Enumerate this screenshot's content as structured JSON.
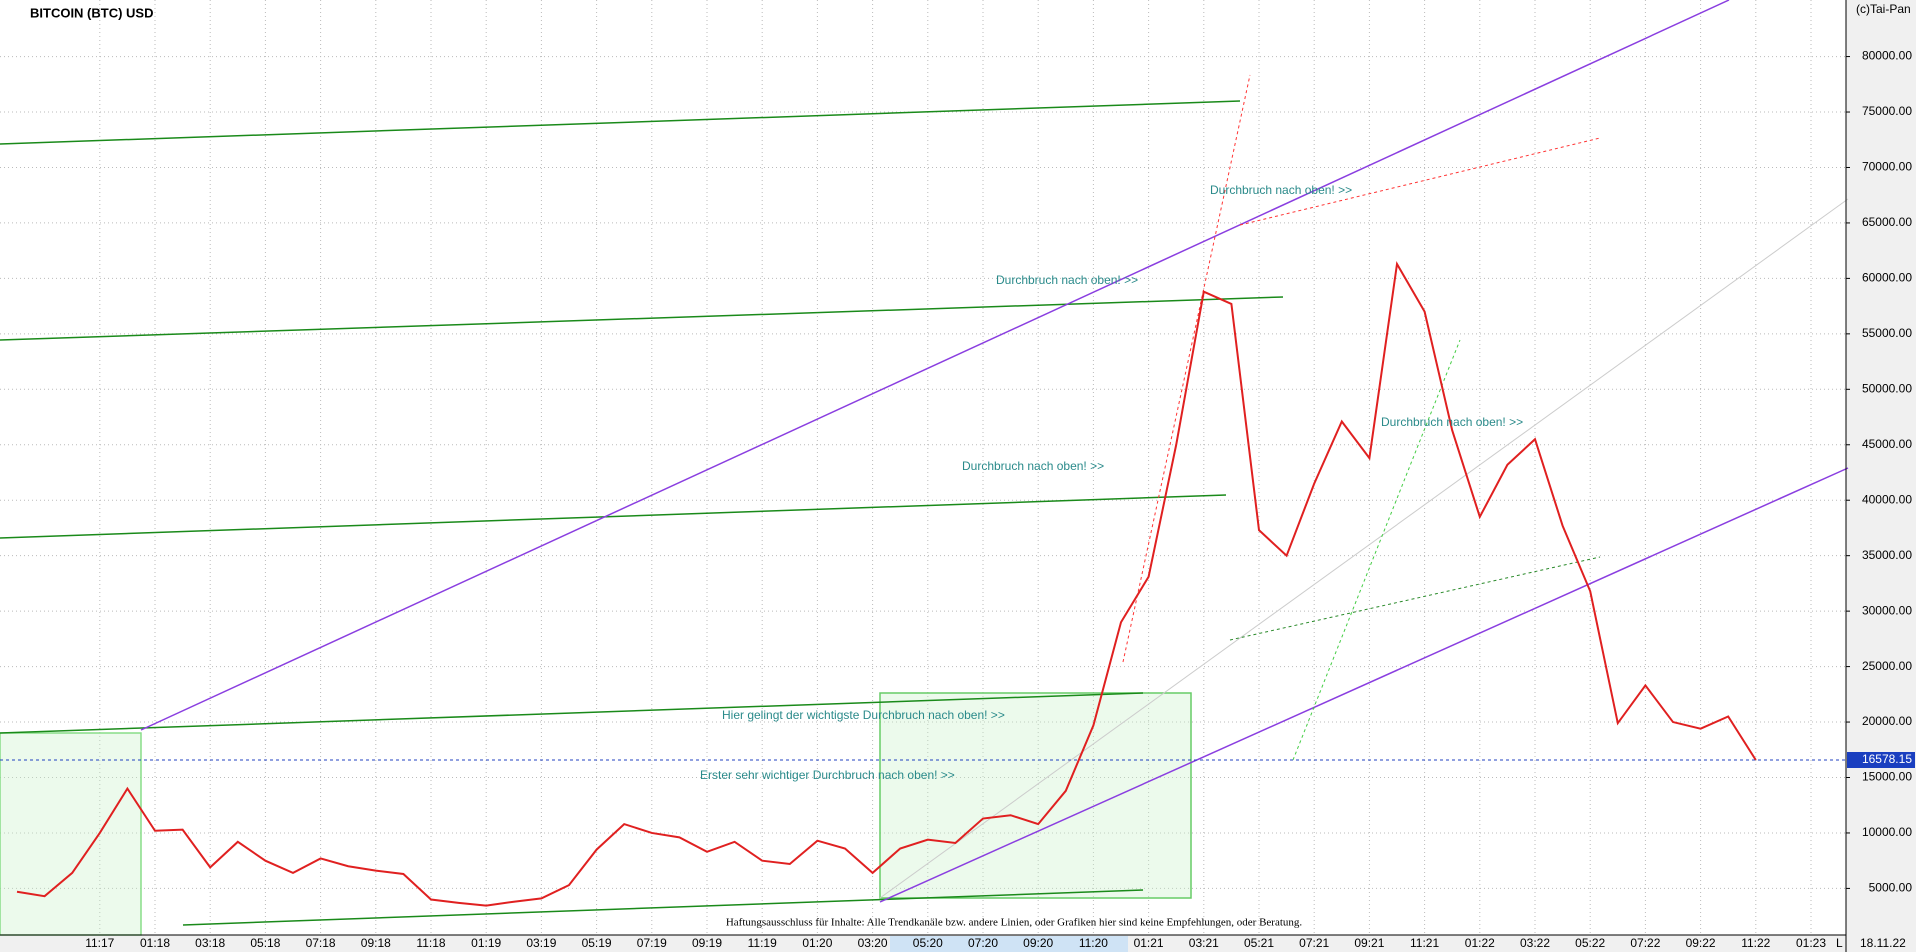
{
  "chart_data": {
    "type": "line",
    "title": "BITCOIN (BTC) USD",
    "source": "(c)Tai-Pan",
    "date": "18.11.22",
    "axis_mode": "L",
    "categories": [
      null,
      null,
      null,
      "11:17",
      null,
      "01:18",
      null,
      "03:18",
      null,
      "05:18",
      null,
      "07:18",
      null,
      "09:18",
      null,
      "11:18",
      null,
      "01:19",
      null,
      "03:19",
      null,
      "05:19",
      null,
      "07:19",
      null,
      "09:19",
      null,
      "11:19",
      null,
      "01:20",
      null,
      "03:20",
      null,
      "05:20",
      null,
      "07:20",
      null,
      "09:20",
      null,
      "11:20",
      null,
      "01:21",
      null,
      "03:21",
      null,
      "05:21",
      null,
      "07:21",
      null,
      "09:21",
      null,
      "11:21",
      null,
      "01:22",
      null,
      "03:22",
      null,
      "05:22",
      null,
      "07:22",
      null,
      "09:22",
      null,
      "11:22",
      null,
      "01:23"
    ],
    "series": [
      {
        "name": "BTC",
        "color": "#e02020",
        "values": [
          4700,
          4300,
          6400,
          10000,
          14000,
          10200,
          10300,
          6900,
          9200,
          7500,
          6400,
          7700,
          7000,
          6600,
          6300,
          4000,
          3700,
          3450,
          3800,
          4100,
          5300,
          8500,
          10800,
          10000,
          9600,
          8300,
          9200,
          7500,
          7200,
          9300,
          8600,
          6400,
          8600,
          9400,
          9100,
          11300,
          11600,
          10800,
          13800,
          19700,
          29000,
          33100,
          45000,
          58800,
          57700,
          37300,
          35000,
          41500,
          47100,
          43800,
          61300,
          57000,
          46300,
          38500,
          43200,
          45500,
          37700,
          31800,
          19900,
          23300,
          20000,
          19400,
          20500,
          16578.15,
          null,
          null
        ]
      }
    ],
    "last_price": 16578.15,
    "ylim": [
      800,
      85100
    ],
    "yticks": [
      {
        "value": 5000,
        "label": "5000.00"
      },
      {
        "value": 10000,
        "label": "10000.00"
      },
      {
        "value": 15000,
        "label": "15000.00"
      },
      {
        "value": 20000,
        "label": "20000.00"
      },
      {
        "value": 25000,
        "label": "25000.00"
      },
      {
        "value": 30000,
        "label": "30000.00"
      },
      {
        "value": 35000,
        "label": "35000.00"
      },
      {
        "value": 40000,
        "label": "40000.00"
      },
      {
        "value": 45000,
        "label": "45000.00"
      },
      {
        "value": 50000,
        "label": "50000.00"
      },
      {
        "value": 55000,
        "label": "55000.00"
      },
      {
        "value": 60000,
        "label": "60000.00"
      },
      {
        "value": 65000,
        "label": "65000.00"
      },
      {
        "value": 70000,
        "label": "70000.00"
      },
      {
        "value": 75000,
        "label": "75000.00"
      },
      {
        "value": 80000,
        "label": "80000.00"
      }
    ],
    "grid": true,
    "annotations": [
      "Durchbruch nach oben! >>",
      "Durchbruch nach oben! >>",
      "Durchbruch nach oben! >>",
      "Durchbruch nach oben! >>",
      "Hier gelingt der wichtigste Durchbruch nach oben! >>",
      "Erster sehr wichtiger Durchbruch nach oben! >>"
    ],
    "disclaimer": "Haftungsausschluss für Inhalte: Alle Trendkanäle bzw. andere Linien, oder Grafiken hier sind keine Empfehlungen, oder Beratung."
  }
}
